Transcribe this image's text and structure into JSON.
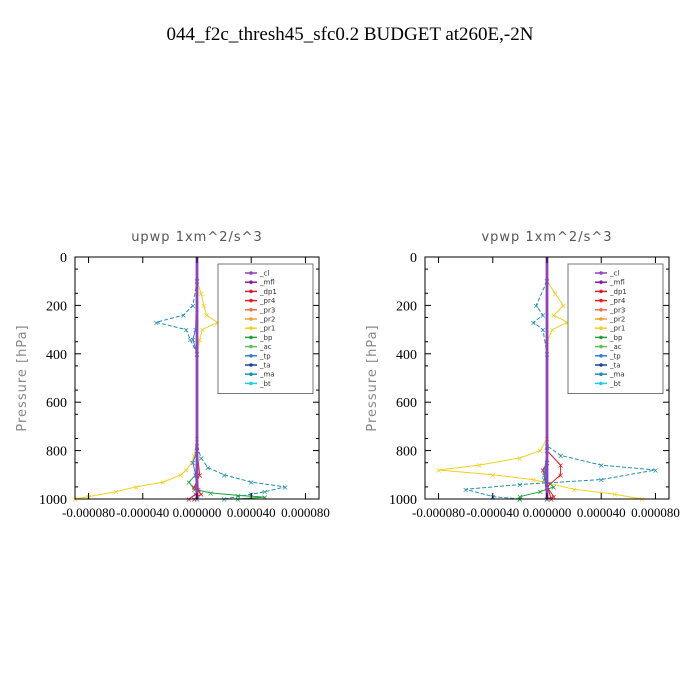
{
  "title": "044_f2c_thresh45_sfc0.2  BUDGET at260E,-2N",
  "legend_entries": [
    "_cl",
    "_mfl",
    "_dp1",
    "_pr4",
    "_pr3",
    "_pr2",
    "_pr1",
    "_bp",
    "_ac",
    "_tp",
    "_ta",
    "_ma",
    "_bt"
  ],
  "series_colors": {
    "_cl": "#9040c0",
    "_mfl": "#8a1f9a",
    "_dp1": "#d0203a",
    "_pr4": "#e02020",
    "_pr3": "#f07050",
    "_pr2": "#f0a030",
    "_pr1": "#f0d020",
    "_bp": "#20a040",
    "_ac": "#60c060",
    "_tp": "#3080d0",
    "_ta": "#2040a0",
    "_ma": "#2090b0",
    "_bt": "#20d0e0"
  },
  "chart_data": [
    {
      "type": "line",
      "title": "upwp   1xm^2/s^3",
      "ylabel": "Pressure [hPa]",
      "xlabel": "",
      "xlim": [
        -9e-05,
        9e-05
      ],
      "ylim": [
        1000,
        0
      ],
      "xticks": [
        "-0.000080",
        "-0.000040",
        "0.000000",
        "0.000040",
        "0.000080"
      ],
      "xtick_values": [
        -8e-05,
        -4e-05,
        0,
        4e-05,
        8e-05
      ],
      "yticks": [
        "0",
        "200",
        "400",
        "600",
        "800",
        "1000"
      ],
      "ytick_values": [
        0,
        200,
        400,
        600,
        800,
        1000
      ],
      "legend": "upper-right",
      "series": [
        {
          "name": "_pr1",
          "points": [
            [
              0,
              100
            ],
            [
              3e-06,
              150
            ],
            [
              5e-06,
              200
            ],
            [
              7e-06,
              240
            ],
            [
              1.5e-05,
              270
            ],
            [
              4e-06,
              300
            ],
            [
              2e-06,
              340
            ],
            [
              0,
              400
            ],
            [
              0,
              750
            ],
            [
              -2e-06,
              820
            ],
            [
              -4e-06,
              850
            ],
            [
              -8e-06,
              880
            ],
            [
              -1.2e-05,
              900
            ],
            [
              -2.5e-05,
              930
            ],
            [
              -4.5e-05,
              950
            ],
            [
              -6e-05,
              970
            ],
            [
              -8e-05,
              990
            ],
            [
              -9e-05,
              1000
            ]
          ]
        },
        {
          "name": "_ma",
          "points": [
            [
              0,
              100
            ],
            [
              -3e-06,
              200
            ],
            [
              -1e-05,
              240
            ],
            [
              -3e-05,
              270
            ],
            [
              -8e-06,
              300
            ],
            [
              -5e-06,
              340
            ],
            [
              0,
              400
            ],
            [
              0,
              780
            ],
            [
              3e-06,
              830
            ],
            [
              8e-06,
              870
            ],
            [
              2e-05,
              900
            ],
            [
              4e-05,
              930
            ],
            [
              6.5e-05,
              950
            ],
            [
              5e-05,
              970
            ],
            [
              4e-05,
              980
            ],
            [
              2e-05,
              1000
            ]
          ]
        },
        {
          "name": "_bp",
          "points": [
            [
              0,
              800
            ],
            [
              -1e-06,
              900
            ],
            [
              -6e-06,
              930
            ],
            [
              -2e-06,
              960
            ],
            [
              1e-05,
              975
            ],
            [
              3e-05,
              985
            ],
            [
              5e-05,
              992
            ],
            [
              3e-05,
              1000
            ]
          ]
        },
        {
          "name": "_pr4",
          "points": [
            [
              0,
              800
            ],
            [
              2e-06,
              900
            ],
            [
              -2e-06,
              950
            ],
            [
              3e-06,
              980
            ],
            [
              -2e-06,
              1000
            ]
          ]
        },
        {
          "name": "_dp1",
          "points": [
            [
              0,
              900
            ],
            [
              1e-06,
              960
            ],
            [
              -1e-06,
              980
            ],
            [
              -6e-06,
              1000
            ]
          ]
        },
        {
          "name": "_tp",
          "points": [
            [
              0,
              100
            ],
            [
              -1e-06,
              300
            ],
            [
              -3e-06,
              340
            ],
            [
              0,
              400
            ],
            [
              0,
              800
            ],
            [
              -3e-06,
              850
            ],
            [
              -1e-06,
              900
            ],
            [
              0,
              1000
            ]
          ]
        },
        {
          "name": "_mfl",
          "points": [
            [
              0,
              0
            ],
            [
              0,
              1000
            ]
          ]
        },
        {
          "name": "_cl",
          "points": [
            [
              0,
              0
            ],
            [
              0,
              1000
            ]
          ]
        }
      ]
    },
    {
      "type": "line",
      "title": "vpwp   1xm^2/s^3",
      "ylabel": "Pressure [hPa]",
      "xlabel": "",
      "xlim": [
        -9e-05,
        9e-05
      ],
      "ylim": [
        1000,
        0
      ],
      "xticks": [
        "-0.000080",
        "-0.000040",
        "0.000000",
        "0.000040",
        "0.000080"
      ],
      "xtick_values": [
        -8e-05,
        -4e-05,
        0,
        4e-05,
        8e-05
      ],
      "yticks": [
        "0",
        "200",
        "400",
        "600",
        "800",
        "1000"
      ],
      "ytick_values": [
        0,
        200,
        400,
        600,
        800,
        1000
      ],
      "legend": "upper-right",
      "series": [
        {
          "name": "_pr1",
          "points": [
            [
              0,
              100
            ],
            [
              6e-06,
              150
            ],
            [
              1.2e-05,
              200
            ],
            [
              5e-06,
              240
            ],
            [
              1.5e-05,
              270
            ],
            [
              4e-06,
              300
            ],
            [
              0,
              350
            ],
            [
              0,
              750
            ],
            [
              -5e-06,
              800
            ],
            [
              -2e-05,
              830
            ],
            [
              -5e-05,
              860
            ],
            [
              -8e-05,
              880
            ],
            [
              -4e-05,
              900
            ],
            [
              -1e-05,
              920
            ],
            [
              2e-05,
              960
            ],
            [
              5e-05,
              980
            ],
            [
              7e-05,
              1000
            ]
          ]
        },
        {
          "name": "_ma",
          "points": [
            [
              0,
              100
            ],
            [
              -8e-06,
              200
            ],
            [
              -3e-06,
              240
            ],
            [
              -1e-05,
              270
            ],
            [
              -3e-06,
              300
            ],
            [
              0,
              400
            ],
            [
              0,
              780
            ],
            [
              1e-05,
              820
            ],
            [
              4e-05,
              860
            ],
            [
              8e-05,
              880
            ],
            [
              4e-05,
              920
            ],
            [
              -2e-05,
              940
            ],
            [
              -6e-05,
              960
            ],
            [
              -4e-05,
              990
            ],
            [
              -2e-05,
              1000
            ]
          ]
        },
        {
          "name": "_bp",
          "points": [
            [
              0,
              850
            ],
            [
              -2e-06,
              920
            ],
            [
              5e-06,
              950
            ],
            [
              -5e-06,
              970
            ],
            [
              -2e-05,
              990
            ],
            [
              -2e-05,
              1000
            ]
          ]
        },
        {
          "name": "_pr4",
          "points": [
            [
              0,
              800
            ],
            [
              1e-05,
              860
            ],
            [
              1e-05,
              900
            ],
            [
              0,
              950
            ],
            [
              5e-06,
              990
            ],
            [
              0,
              1000
            ]
          ]
        },
        {
          "name": "_dp1",
          "points": [
            [
              0,
              850
            ],
            [
              -3e-06,
              880
            ],
            [
              0,
              940
            ],
            [
              3e-06,
              1000
            ]
          ]
        },
        {
          "name": "_tp",
          "points": [
            [
              0,
              100
            ],
            [
              0,
              800
            ],
            [
              -2e-06,
              900
            ],
            [
              0,
              1000
            ]
          ]
        },
        {
          "name": "_mfl",
          "points": [
            [
              0,
              0
            ],
            [
              0,
              1000
            ]
          ]
        },
        {
          "name": "_cl",
          "points": [
            [
              0,
              0
            ],
            [
              0,
              1000
            ]
          ]
        }
      ]
    }
  ]
}
